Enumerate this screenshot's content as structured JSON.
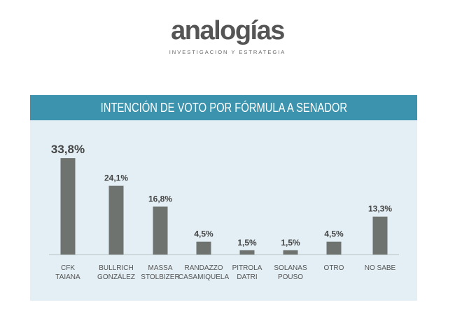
{
  "logo": {
    "name": "analogías",
    "tagline": "INVESTIGACION Y ESTRATEGIA"
  },
  "chart_data": {
    "type": "bar",
    "title": "INTENCIÓN DE VOTO POR FÓRMULA A SENADOR",
    "categories": [
      [
        "CFK",
        "TAIANA"
      ],
      [
        "BULLRICH",
        "GONZÁLEZ"
      ],
      [
        "MASSA",
        "STOLBIZER"
      ],
      [
        "RANDAZZO",
        "CASAMIQUELA"
      ],
      [
        "PITROLA",
        "DATRI"
      ],
      [
        "SOLANAS",
        "POUSO"
      ],
      [
        "OTRO"
      ],
      [
        "NO SABE"
      ]
    ],
    "values": [
      33.8,
      24.1,
      16.8,
      4.5,
      1.5,
      1.5,
      4.5,
      13.3
    ],
    "labels": [
      "33,8%",
      "24,1%",
      "16,8%",
      "4,5%",
      "1,5%",
      "1,5%",
      "4,5%",
      "13,3%"
    ],
    "xlabel": "",
    "ylabel": "",
    "ylim": [
      0,
      35
    ],
    "grid": false,
    "colors": {
      "bar": "#6f736f",
      "header": "#3c93ad",
      "panel": "#e3eff4",
      "text": "#444444"
    }
  }
}
